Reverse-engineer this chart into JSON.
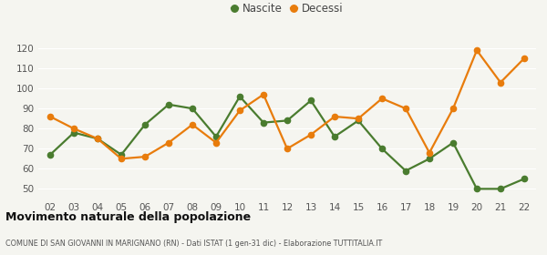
{
  "years": [
    "02",
    "03",
    "04",
    "05",
    "06",
    "07",
    "08",
    "09",
    "10",
    "11",
    "12",
    "13",
    "14",
    "15",
    "16",
    "17",
    "18",
    "19",
    "20",
    "21",
    "22"
  ],
  "nascite": [
    67,
    78,
    75,
    67,
    82,
    92,
    90,
    76,
    96,
    83,
    84,
    94,
    76,
    84,
    70,
    59,
    65,
    73,
    50,
    50,
    55
  ],
  "decessi": [
    86,
    80,
    75,
    65,
    66,
    73,
    82,
    73,
    89,
    97,
    70,
    77,
    86,
    85,
    95,
    90,
    68,
    90,
    119,
    103,
    115
  ],
  "nascite_color": "#4a7c2f",
  "decessi_color": "#e87c0c",
  "bg_color": "#f5f5f0",
  "grid_color": "#ffffff",
  "title": "Movimento naturale della popolazione",
  "subtitle": "COMUNE DI SAN GIOVANNI IN MARIGNANO (RN) - Dati ISTAT (1 gen-31 dic) - Elaborazione TUTTITALIA.IT",
  "ylabel_ticks": [
    50,
    60,
    70,
    80,
    90,
    100,
    110,
    120
  ],
  "ylim": [
    45,
    125
  ],
  "legend_nascite": "Nascite",
  "legend_decessi": "Decessi",
  "marker_size": 4.5,
  "linewidth": 1.6
}
